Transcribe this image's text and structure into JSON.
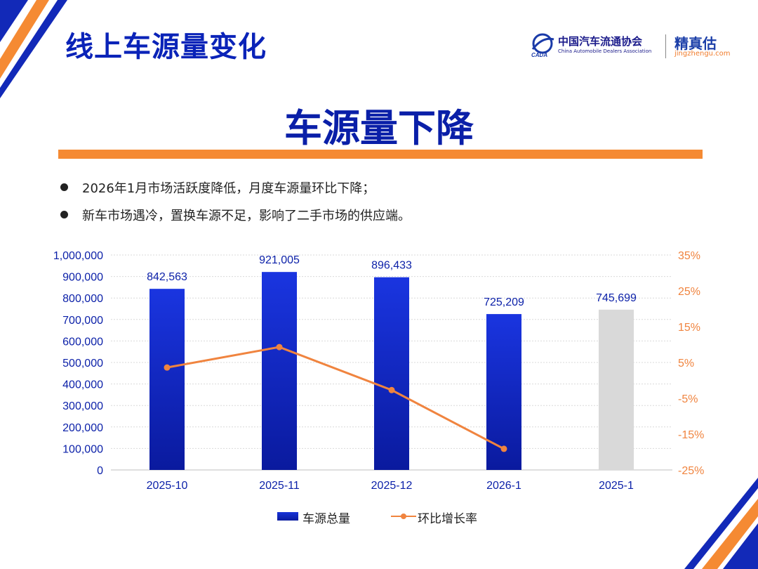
{
  "header": {
    "title": "线上车源量变化",
    "logo_cn": "中国汽车流通协会",
    "logo_en": "China Automobile Dealers Association",
    "logo_mark": "CADA",
    "brand_cn": "精真估",
    "brand_url": "jingzhengu.com"
  },
  "headline": "车源量下降",
  "bullets": [
    "2026年1月市场活跃度降低，月度车源量环比下降；",
    "新车市场遇冷，置换车源不足，影响了二手市场的供应端。"
  ],
  "colors": {
    "title_blue": "#0a23b8",
    "bar_blue": "#1028c8",
    "bar_gray": "#d9d9d9",
    "line_orange": "#f0843f",
    "accent_orange": "#f58a33"
  },
  "chart_data": {
    "type": "bar+line",
    "categories": [
      "2025-10",
      "2025-11",
      "2025-12",
      "2026-1",
      "2025-1"
    ],
    "series": [
      {
        "name": "车源总量",
        "type": "bar",
        "axis": "left",
        "values": [
          842563,
          921005,
          896433,
          725209,
          745699
        ],
        "labels": [
          "842,563",
          "921,005",
          "896,433",
          "725,209",
          "745,699"
        ]
      },
      {
        "name": "环比增长率",
        "type": "line",
        "axis": "right",
        "values": [
          3.6,
          9.3,
          -2.7,
          -19.1,
          null
        ]
      }
    ],
    "y_left": {
      "min": 0,
      "max": 1000000,
      "step": 100000,
      "ticks": [
        "0",
        "100,000",
        "200,000",
        "300,000",
        "400,000",
        "500,000",
        "600,000",
        "700,000",
        "800,000",
        "900,000",
        "1,000,000"
      ]
    },
    "y_right": {
      "min": -25,
      "max": 35,
      "step": 10,
      "ticks": [
        "-25%",
        "-15%",
        "-5%",
        "5%",
        "15%",
        "25%",
        "35%"
      ]
    },
    "grid": true,
    "legend": "bottom-center"
  }
}
